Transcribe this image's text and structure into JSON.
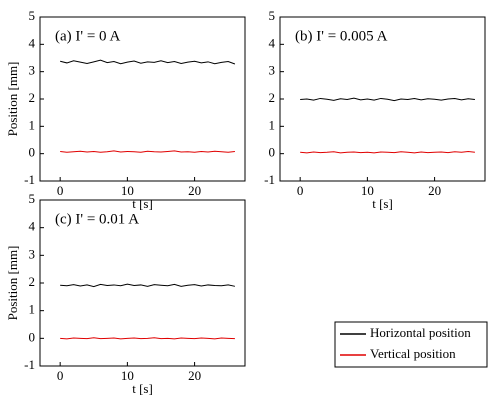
{
  "chart_data": [
    {
      "type": "line",
      "title": "(a) I' = 0 A",
      "xlabel": "t [s]",
      "ylabel": "Position [mm]",
      "x": [
        0,
        1,
        2,
        3,
        4,
        5,
        6,
        7,
        8,
        9,
        10,
        11,
        12,
        13,
        14,
        15,
        16,
        17,
        18,
        19,
        20,
        21,
        22,
        23,
        24,
        25,
        26
      ],
      "series": [
        {
          "name": "Horizontal position",
          "color": "#000000",
          "values": [
            3.38,
            3.32,
            3.4,
            3.35,
            3.3,
            3.36,
            3.42,
            3.33,
            3.37,
            3.29,
            3.35,
            3.39,
            3.31,
            3.36,
            3.34,
            3.4,
            3.33,
            3.37,
            3.3,
            3.35,
            3.38,
            3.32,
            3.36,
            3.29,
            3.34,
            3.37,
            3.28
          ]
        },
        {
          "name": "Vertical position",
          "color": "#e00000",
          "values": [
            0.08,
            0.05,
            0.07,
            0.09,
            0.06,
            0.08,
            0.05,
            0.07,
            0.1,
            0.06,
            0.08,
            0.07,
            0.05,
            0.09,
            0.07,
            0.06,
            0.08,
            0.1,
            0.06,
            0.07,
            0.05,
            0.08,
            0.06,
            0.09,
            0.07,
            0.05,
            0.08
          ]
        }
      ],
      "xlim": [
        -3,
        27.5
      ],
      "ylim": [
        -1,
        5
      ],
      "xticks": [
        0,
        10,
        20
      ],
      "yticks": [
        -1,
        0,
        1,
        2,
        3,
        4,
        5
      ]
    },
    {
      "type": "line",
      "title": "(b) I' = 0.005 A",
      "xlabel": "t [s]",
      "x": [
        0,
        1,
        2,
        3,
        4,
        5,
        6,
        7,
        8,
        9,
        10,
        11,
        12,
        13,
        14,
        15,
        16,
        17,
        18,
        19,
        20,
        21,
        22,
        23,
        24,
        25,
        26
      ],
      "series": [
        {
          "color": "#000000",
          "values": [
            1.98,
            2.0,
            1.96,
            2.02,
            1.99,
            1.95,
            2.01,
            1.98,
            2.03,
            1.97,
            2.0,
            1.96,
            2.02,
            1.99,
            1.94,
            2.0,
            1.98,
            2.02,
            1.97,
            2.01,
            1.99,
            1.96,
            2.0,
            2.02,
            1.97,
            2.01,
            1.98
          ]
        },
        {
          "color": "#e00000",
          "values": [
            0.05,
            0.03,
            0.06,
            0.04,
            0.05,
            0.07,
            0.03,
            0.05,
            0.06,
            0.04,
            0.05,
            0.03,
            0.06,
            0.05,
            0.04,
            0.07,
            0.05,
            0.03,
            0.06,
            0.04,
            0.05,
            0.06,
            0.04,
            0.07,
            0.05,
            0.08,
            0.05
          ]
        }
      ],
      "xlim": [
        -3,
        27.5
      ],
      "ylim": [
        -1,
        5
      ],
      "xticks": [
        0,
        10,
        20
      ],
      "yticks": [
        -1,
        0,
        1,
        2,
        3,
        4,
        5
      ]
    },
    {
      "type": "line",
      "title": "(c) I' = 0.01 A",
      "xlabel": "t [s]",
      "ylabel": "Position [mm]",
      "x": [
        0,
        1,
        2,
        3,
        4,
        5,
        6,
        7,
        8,
        9,
        10,
        11,
        12,
        13,
        14,
        15,
        16,
        17,
        18,
        19,
        20,
        21,
        22,
        23,
        24,
        25,
        26
      ],
      "series": [
        {
          "color": "#000000",
          "values": [
            1.92,
            1.9,
            1.94,
            1.89,
            1.93,
            1.87,
            1.95,
            1.91,
            1.93,
            1.9,
            1.96,
            1.91,
            1.93,
            1.88,
            1.94,
            1.92,
            1.9,
            1.95,
            1.88,
            1.92,
            1.94,
            1.89,
            1.93,
            1.91,
            1.9,
            1.93,
            1.88
          ]
        },
        {
          "color": "#e00000",
          "values": [
            0.0,
            -0.02,
            0.01,
            0.0,
            -0.01,
            0.02,
            -0.01,
            0.0,
            0.01,
            -0.02,
            0.0,
            0.01,
            -0.01,
            0.0,
            0.02,
            -0.01,
            0.0,
            -0.02,
            0.01,
            0.0,
            -0.01,
            0.01,
            0.0,
            -0.02,
            0.01,
            0.0,
            -0.01
          ]
        }
      ],
      "xlim": [
        -3,
        27.5
      ],
      "ylim": [
        -1,
        5
      ],
      "xticks": [
        0,
        10,
        20
      ],
      "yticks": [
        -1,
        0,
        1,
        2,
        3,
        4,
        5
      ]
    }
  ]
}
